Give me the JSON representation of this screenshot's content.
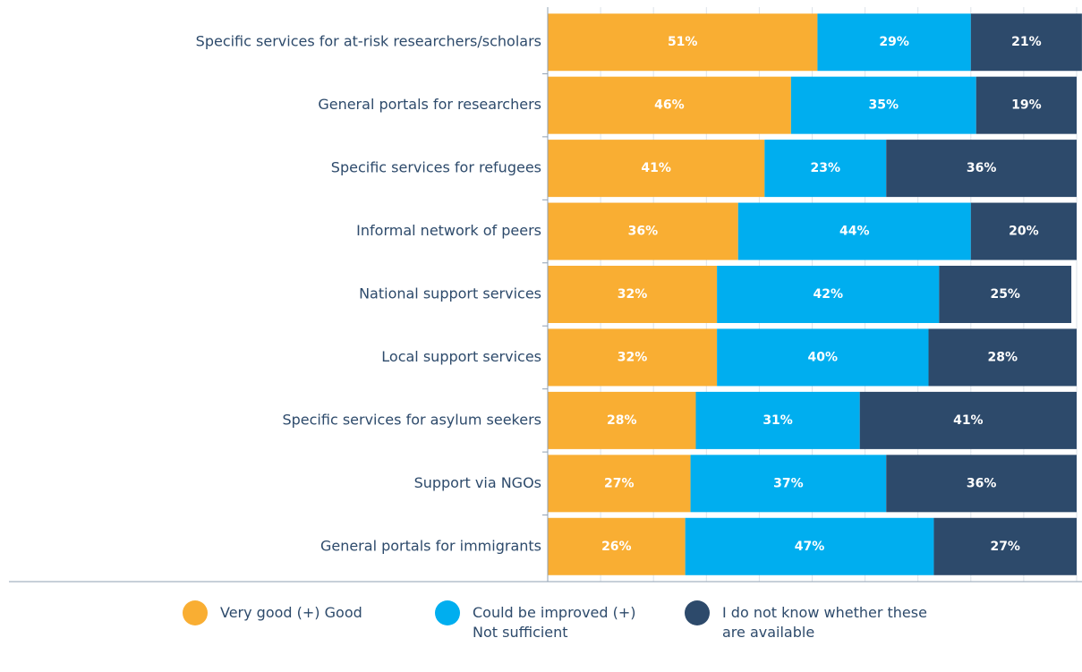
{
  "chart_data": {
    "type": "stacked-bar-horizontal",
    "categories": [
      "Specific services for at-risk researchers/scholars",
      "General portals for researchers",
      "Specific services for refugees",
      "Informal network of peers",
      "National support services",
      "Local support services",
      "Specific services for asylum seekers",
      "Support via NGOs",
      "General portals for immigrants"
    ],
    "series": [
      {
        "name": "Very good (+) Good",
        "color": "#f9ae33",
        "values": [
          51,
          46,
          41,
          36,
          32,
          32,
          28,
          27,
          26
        ],
        "value_labels": [
          "51%",
          "46%",
          "41%",
          "36%",
          "32%",
          "32%",
          "28%",
          "27%",
          "26%"
        ]
      },
      {
        "name": "Could be improved (+) Not sufficient",
        "color": "#00aeef",
        "values": [
          29,
          35,
          23,
          44,
          42,
          40,
          31,
          37,
          47
        ],
        "value_labels": [
          "29%",
          "35%",
          "23%",
          "44%",
          "42%",
          "40%",
          "31%",
          "37%",
          "47%"
        ]
      },
      {
        "name": "I do not know whether these are available",
        "color": "#2d4a6b",
        "values": [
          21,
          19,
          36,
          20,
          25,
          28,
          41,
          36,
          27
        ],
        "value_labels": [
          "21%",
          "19%",
          "36%",
          "20%",
          "25%",
          "28%",
          "41%",
          "36%",
          "27%"
        ]
      }
    ],
    "xlim": [
      0,
      100
    ],
    "xticks": [
      0,
      10,
      20,
      30,
      40,
      50,
      60,
      70,
      80,
      90,
      100
    ],
    "grid": true
  }
}
